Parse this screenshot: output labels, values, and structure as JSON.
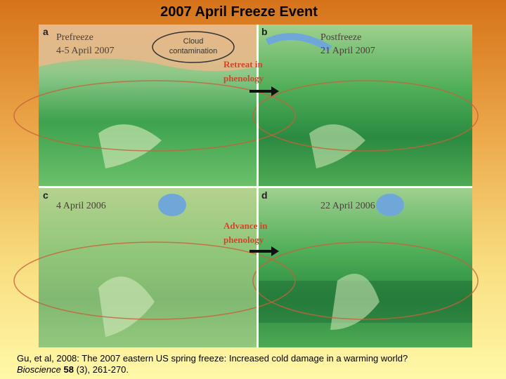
{
  "title": "2007 April Freeze Event",
  "panels": [
    {
      "letter": "a",
      "lines": [
        "Prefreeze",
        "4-5 April 2007"
      ]
    },
    {
      "letter": "b",
      "lines": [
        "Postfreeze",
        "21 April 2007"
      ]
    },
    {
      "letter": "c",
      "lines": [
        "4 April 2006"
      ]
    },
    {
      "letter": "d",
      "lines": [
        "22 April 2006"
      ]
    }
  ],
  "annotations": {
    "cloud": [
      "Cloud",
      "contamination"
    ],
    "retreat": [
      "Retreat in",
      "phenology"
    ],
    "advance": [
      "Advance in",
      "phenology"
    ]
  },
  "citation": {
    "text": "Gu, et al, 2008:  The  2007 eastern US spring freeze:  Increased cold damage in a warming world?",
    "journal": "Bioscience",
    "volume": "58",
    "pages": "(3), 261-270."
  }
}
